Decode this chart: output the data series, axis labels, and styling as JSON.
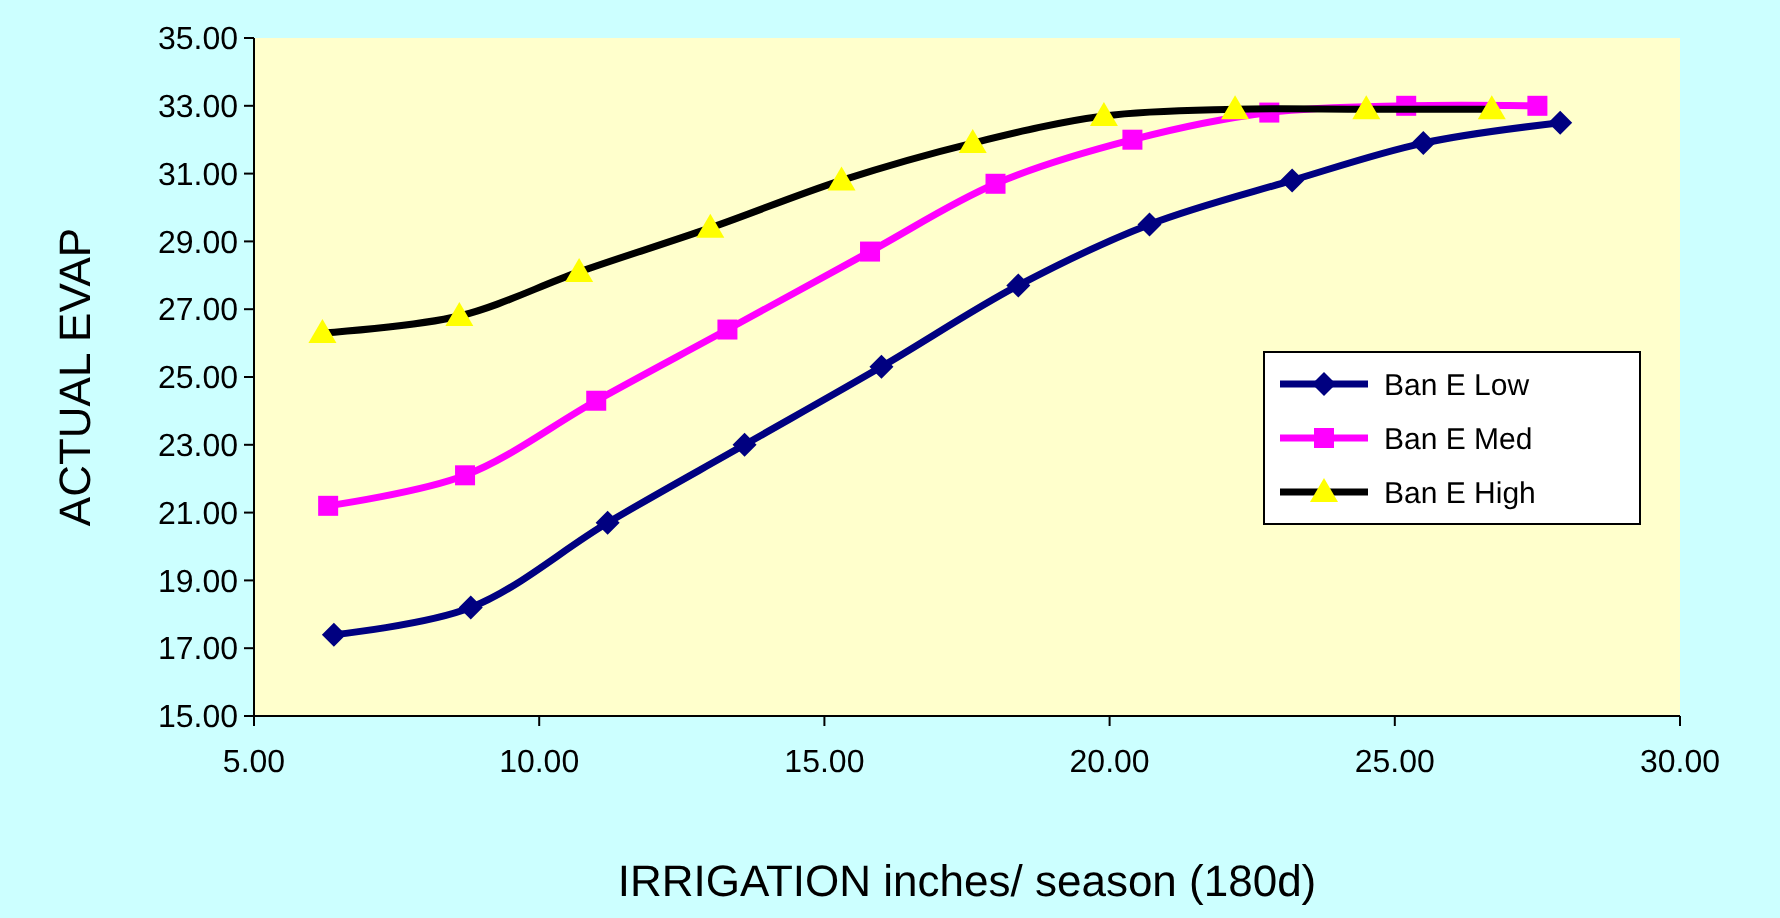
{
  "chart_data": {
    "type": "line",
    "xlabel": "IRRIGATION inches/ season (180d)",
    "ylabel": "ACTUAL EVAP",
    "xlim": [
      5,
      30
    ],
    "xticks": [
      {
        "value": 5,
        "label": "5.00"
      },
      {
        "value": 10,
        "label": "10.00"
      },
      {
        "value": 15,
        "label": "15.00"
      },
      {
        "value": 20,
        "label": "20.00"
      },
      {
        "value": 25,
        "label": "25.00"
      },
      {
        "value": 30,
        "label": "30.00"
      }
    ],
    "ylim": [
      15,
      35
    ],
    "yticks": [
      {
        "value": 15,
        "label": "15.00"
      },
      {
        "value": 17,
        "label": "17.00"
      },
      {
        "value": 19,
        "label": "19.00"
      },
      {
        "value": 21,
        "label": "21.00"
      },
      {
        "value": 23,
        "label": "23.00"
      },
      {
        "value": 25,
        "label": "25.00"
      },
      {
        "value": 27,
        "label": "27.00"
      },
      {
        "value": 29,
        "label": "29.00"
      },
      {
        "value": 31,
        "label": "31.00"
      },
      {
        "value": 33,
        "label": "33.00"
      },
      {
        "value": 35,
        "label": "35.00"
      }
    ],
    "grid": false,
    "legend": "right",
    "series": [
      {
        "name": "Ban E Low",
        "color": "#000080",
        "marker": "diamond",
        "x": [
          6.4,
          8.8,
          11.2,
          13.6,
          16.0,
          18.4,
          20.7,
          23.2,
          25.5,
          27.9
        ],
        "values": [
          17.4,
          18.2,
          20.7,
          23.0,
          25.3,
          27.7,
          29.5,
          30.8,
          31.9,
          32.5
        ]
      },
      {
        "name": "Ban E Med",
        "color": "#ff00ff",
        "marker": "square",
        "x": [
          6.3,
          8.7,
          11.0,
          13.3,
          15.8,
          18.0,
          20.4,
          22.8,
          25.2,
          27.5
        ],
        "values": [
          21.2,
          22.1,
          24.3,
          26.4,
          28.7,
          30.7,
          32.0,
          32.8,
          33.0,
          33.0
        ]
      },
      {
        "name": "Ban E High",
        "color": "#000000",
        "marker": "triangle",
        "colors": [
          "#ffff00",
          "#ffff00",
          "#ffff00",
          "#ffff00",
          "#ffff00",
          "#ffff00",
          "#ffff00",
          "#ffff00",
          "#ffff00",
          "#ffff00"
        ],
        "x": [
          6.2,
          8.6,
          10.7,
          13.0,
          15.3,
          17.6,
          19.9,
          22.2,
          24.5,
          26.7
        ],
        "values": [
          26.3,
          26.8,
          28.1,
          29.4,
          30.8,
          31.9,
          32.7,
          32.9,
          32.9,
          32.9
        ]
      }
    ]
  }
}
